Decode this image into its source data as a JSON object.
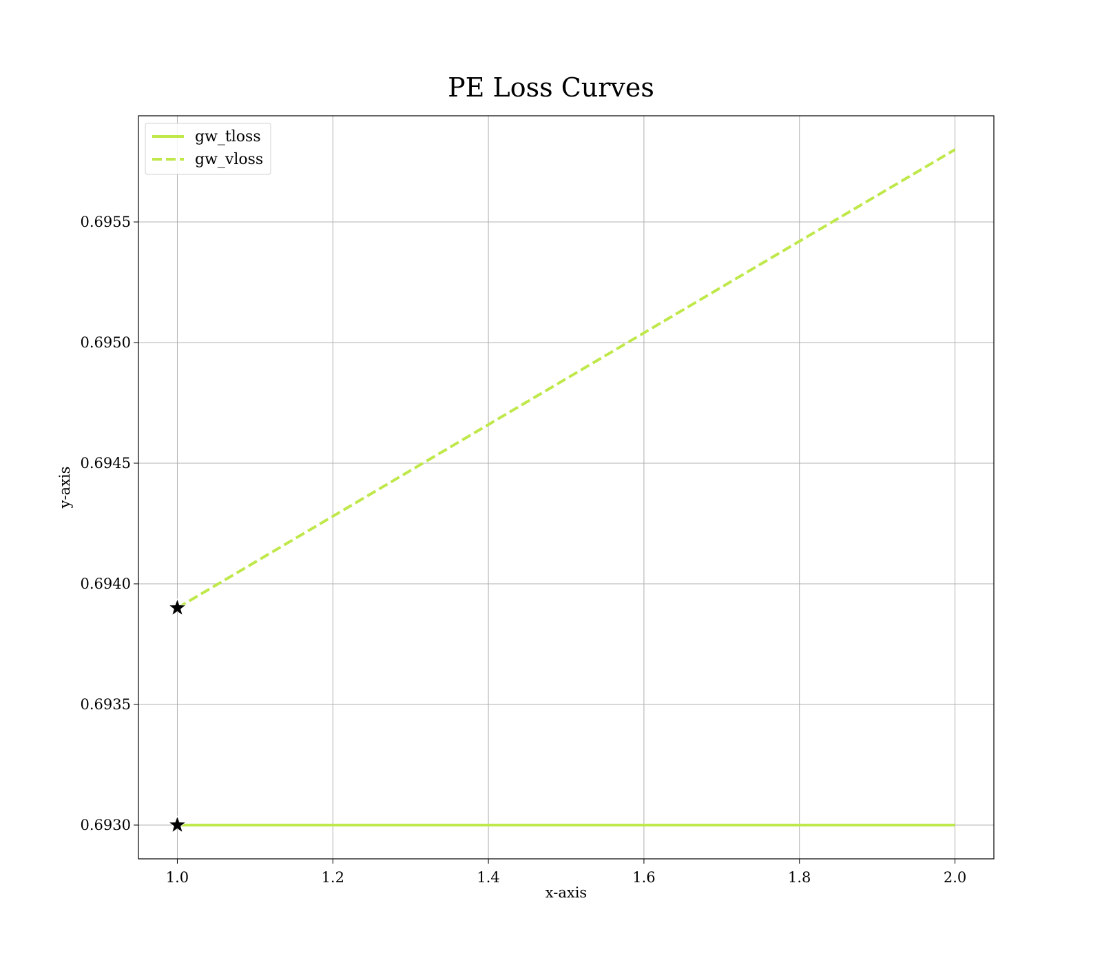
{
  "chart_data": {
    "type": "line",
    "title": "PE Loss Curves",
    "xlabel": "x-axis",
    "ylabel": "y-axis",
    "xlim": [
      0.95,
      2.05
    ],
    "ylim": [
      0.69286,
      0.69594
    ],
    "xticks": [
      1.0,
      1.2,
      1.4,
      1.6,
      1.8,
      2.0
    ],
    "xtick_labels": [
      "1.0",
      "1.2",
      "1.4",
      "1.6",
      "1.8",
      "2.0"
    ],
    "yticks": [
      0.693,
      0.6935,
      0.694,
      0.6945,
      0.695,
      0.6955
    ],
    "ytick_labels": [
      "0.6930",
      "0.6935",
      "0.6940",
      "0.6945",
      "0.6950",
      "0.6955"
    ],
    "grid": true,
    "legend_position": "top-left",
    "series": [
      {
        "name": "gw_tloss",
        "style": "solid",
        "color": "#bfe84a",
        "x": [
          1,
          2
        ],
        "y": [
          0.693,
          0.693
        ],
        "marker_points": [
          {
            "x": 1,
            "y": 0.693
          }
        ]
      },
      {
        "name": "gw_vloss",
        "style": "dashed",
        "color": "#bfe84a",
        "x": [
          1,
          2
        ],
        "y": [
          0.6939,
          0.6958
        ],
        "marker_points": [
          {
            "x": 1,
            "y": 0.6939
          }
        ]
      }
    ]
  }
}
